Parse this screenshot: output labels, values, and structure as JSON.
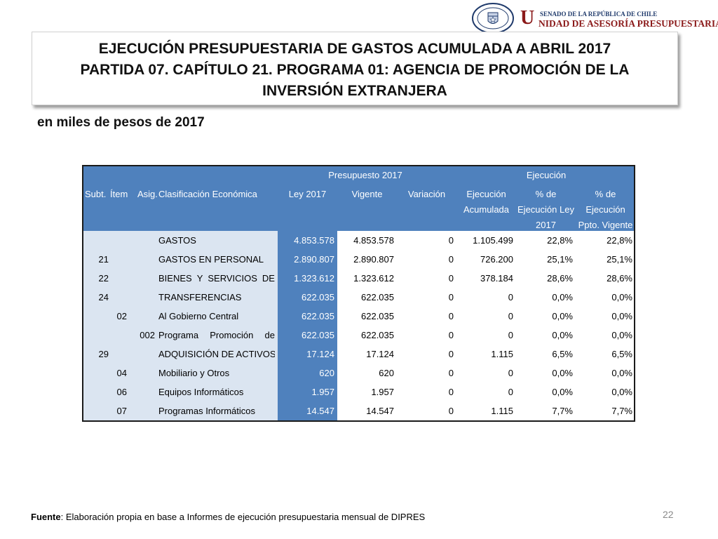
{
  "header_logo": {
    "seal_text": "REPÚBLICA DE CHILE · SENADO",
    "small_line": "SENADO DE LA REPÚBLICA DE CHILE",
    "initial": "U",
    "main_line": "NIDAD DE ASESORÍA PRESUPUESTARIA",
    "seal_color": "#1f3a6b",
    "text_color": "#8b1a1a"
  },
  "title": {
    "line1": "EJECUCIÓN PRESUPUESTARIA DE GASTOS ACUMULADA A ABRIL 2017",
    "line2": "PARTIDA 07. CAPÍTULO 21. PROGRAMA 01: AGENCIA DE PROMOCIÓN DE LA",
    "line3": "INVERSIÓN EXTRANJERA"
  },
  "subtitle": "en miles de pesos de 2017",
  "table": {
    "group_headers": {
      "presupuesto": "Presupuesto 2017",
      "ejecucion": "Ejecución"
    },
    "columns": {
      "subt": "Subt.",
      "item": "Ítem",
      "asig": "Asig.",
      "clasificacion": "Clasificación Económica",
      "ley": "Ley 2017",
      "vigente": "Vigente",
      "variacion": "Variación",
      "ejec_1": "Ejecución",
      "ejec_2": "Acumulada",
      "pct_ley_1": "% de",
      "pct_ley_2": "Ejecución Ley",
      "pct_ley_3": "2017",
      "pct_vig_1": "% de",
      "pct_vig_2": "Ejecución",
      "pct_vig_3": "Ppto. Vigente"
    },
    "colors": {
      "header_bg": "#4f81bd",
      "first_cols_bg": "#dbe5f1"
    },
    "rows": [
      {
        "subt": "",
        "item": "",
        "asig": "",
        "clasificacion": "GASTOS",
        "justify": false,
        "ley": "4.853.578",
        "vigente": "4.853.578",
        "variacion": "0",
        "ejecucion": "1.105.499",
        "pct_ley": "22,8%",
        "pct_vig": "22,8%"
      },
      {
        "subt": "21",
        "item": "",
        "asig": "",
        "clasificacion": "GASTOS EN PERSONAL",
        "justify": false,
        "ley": "2.890.807",
        "vigente": "2.890.807",
        "variacion": "0",
        "ejecucion": "726.200",
        "pct_ley": "25,1%",
        "pct_vig": "25,1%"
      },
      {
        "subt": "22",
        "item": "",
        "asig": "",
        "clasificacion": "BIENES Y SERVICIOS DE",
        "justify": true,
        "ley": "1.323.612",
        "vigente": "1.323.612",
        "variacion": "0",
        "ejecucion": "378.184",
        "pct_ley": "28,6%",
        "pct_vig": "28,6%"
      },
      {
        "subt": "24",
        "item": "",
        "asig": "",
        "clasificacion": "TRANSFERENCIAS",
        "justify": false,
        "ley": "622.035",
        "vigente": "622.035",
        "variacion": "0",
        "ejecucion": "0",
        "pct_ley": "0,0%",
        "pct_vig": "0,0%"
      },
      {
        "subt": "",
        "item": "02",
        "asig": "",
        "clasificacion": "Al Gobierno Central",
        "justify": false,
        "ley": "622.035",
        "vigente": "622.035",
        "variacion": "0",
        "ejecucion": "0",
        "pct_ley": "0,0%",
        "pct_vig": "0,0%"
      },
      {
        "subt": "",
        "item": "",
        "asig": "002",
        "clasificacion": "Programa Promoción de",
        "justify": true,
        "ley": "622.035",
        "vigente": "622.035",
        "variacion": "0",
        "ejecucion": "0",
        "pct_ley": "0,0%",
        "pct_vig": "0,0%"
      },
      {
        "subt": "29",
        "item": "",
        "asig": "",
        "clasificacion": "ADQUISICIÓN DE ACTIVOS NO",
        "justify": false,
        "ley": "17.124",
        "vigente": "17.124",
        "variacion": "0",
        "ejecucion": "1.115",
        "pct_ley": "6,5%",
        "pct_vig": "6,5%"
      },
      {
        "subt": "",
        "item": "04",
        "asig": "",
        "clasificacion": "Mobiliario y Otros",
        "justify": false,
        "ley": "620",
        "vigente": "620",
        "variacion": "0",
        "ejecucion": "0",
        "pct_ley": "0,0%",
        "pct_vig": "0,0%"
      },
      {
        "subt": "",
        "item": "06",
        "asig": "",
        "clasificacion": "Equipos Informáticos",
        "justify": false,
        "ley": "1.957",
        "vigente": "1.957",
        "variacion": "0",
        "ejecucion": "0",
        "pct_ley": "0,0%",
        "pct_vig": "0,0%"
      },
      {
        "subt": "",
        "item": "07",
        "asig": "",
        "clasificacion": "Programas Informáticos",
        "justify": false,
        "ley": "14.547",
        "vigente": "14.547",
        "variacion": "0",
        "ejecucion": "1.115",
        "pct_ley": "7,7%",
        "pct_vig": "7,7%"
      }
    ]
  },
  "footer": {
    "source_label": "Fuente",
    "source_text": ": Elaboración propia en base  a Informes de ejecución presupuestaria mensual de DIPRES"
  },
  "page_number": "22"
}
